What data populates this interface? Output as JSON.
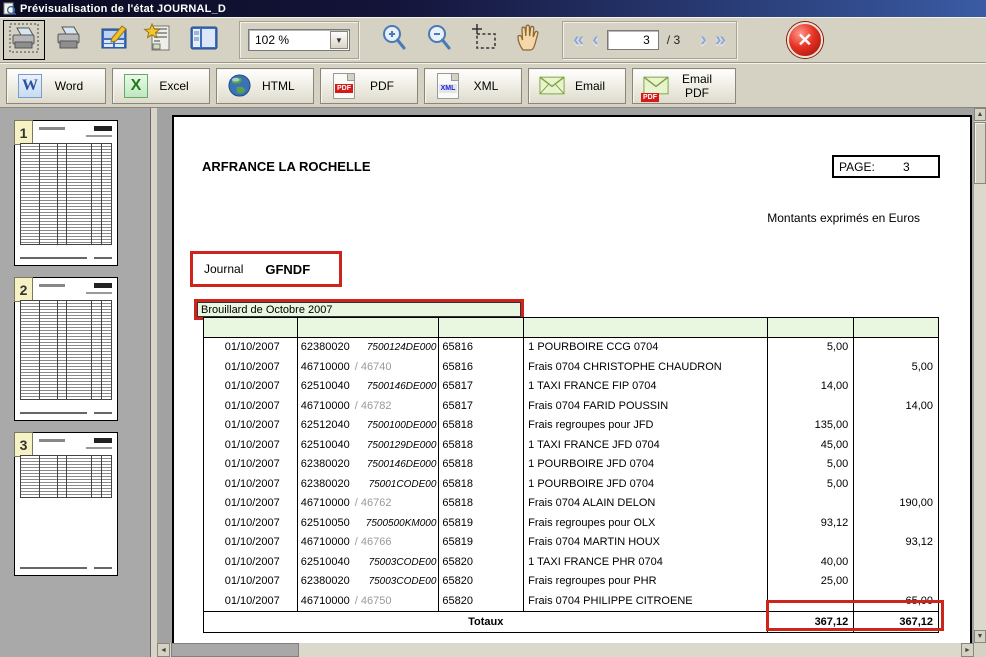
{
  "window": {
    "title": "Prévisualisation de l'état JOURNAL_D"
  },
  "toolbar": {
    "buttons": [
      {
        "icon": "print-preview-icon",
        "selected": true
      },
      {
        "icon": "printer-icon",
        "selected": false
      },
      {
        "icon": "page-setup-icon",
        "selected": false
      },
      {
        "icon": "report-wizard-icon",
        "selected": false
      },
      {
        "icon": "layout-panels-icon",
        "selected": false
      }
    ],
    "zoom_value": "102 %",
    "zoom_in_icon": "zoom-in-icon",
    "zoom_out_icon": "zoom-out-icon",
    "select_tool_icon": "selection-tool-icon",
    "hand_tool_icon": "hand-tool-icon",
    "nav": {
      "first": "«",
      "prev": "‹",
      "next": "›",
      "last": "»",
      "page_current": "3",
      "page_total": "/ 3"
    },
    "close_icon": "close-icon",
    "close_glyph": "✕",
    "dropdown_glyph": "▼"
  },
  "export_buttons": [
    {
      "label": "Word",
      "icon": "word-icon",
      "glyph": "W"
    },
    {
      "label": "Excel",
      "icon": "excel-icon",
      "glyph": "X"
    },
    {
      "label": "HTML",
      "icon": "globe-icon",
      "glyph": ""
    },
    {
      "label": "PDF",
      "icon": "pdf-icon",
      "glyph": "PDF"
    },
    {
      "label": "XML",
      "icon": "xml-icon",
      "glyph": "XML"
    },
    {
      "label": "Email",
      "icon": "email-icon",
      "glyph": ""
    },
    {
      "label": "Email PDF",
      "icon": "email-pdf-icon",
      "glyph": "PDF"
    }
  ],
  "thumbnails": [
    {
      "number": "1",
      "fill": "full"
    },
    {
      "number": "2",
      "fill": "full"
    },
    {
      "number": "3",
      "fill": "partial"
    }
  ],
  "document": {
    "company": "ARFRANCE LA ROCHELLE",
    "page_label": "PAGE:",
    "page_number": "3",
    "currency_note": "Montants exprimés en Euros",
    "journal_label": "Journal",
    "journal_code": "GFNDF",
    "period_title": "Brouillard de Octobre 2007",
    "rows": [
      {
        "date": "01/10/2007",
        "account": "62380020",
        "aux": "7500124DE000",
        "piece": "65816",
        "label": "1 POURBOIRE CCG 0704",
        "debit": "5,00",
        "credit": ""
      },
      {
        "date": "01/10/2007",
        "account": "46710000",
        "aux": "/ 46740",
        "piece": "65816",
        "label": "Frais 0704 CHRISTOPHE CHAUDRON",
        "debit": "",
        "credit": "5,00"
      },
      {
        "date": "01/10/2007",
        "account": "62510040",
        "aux": "7500146DE000",
        "piece": "65817",
        "label": "1 TAXI FRANCE FIP 0704",
        "debit": "14,00",
        "credit": ""
      },
      {
        "date": "01/10/2007",
        "account": "46710000",
        "aux": "/ 46782",
        "piece": "65817",
        "label": "Frais 0704 FARID POUSSIN",
        "debit": "",
        "credit": "14,00"
      },
      {
        "date": "01/10/2007",
        "account": "62512040",
        "aux": "7500100DE000",
        "piece": "65818",
        "label": "Frais regroupes pour JFD",
        "debit": "135,00",
        "credit": ""
      },
      {
        "date": "01/10/2007",
        "account": "62510040",
        "aux": "7500129DE000",
        "piece": "65818",
        "label": "1 TAXI FRANCE JFD 0704",
        "debit": "45,00",
        "credit": ""
      },
      {
        "date": "01/10/2007",
        "account": "62380020",
        "aux": "7500146DE000",
        "piece": "65818",
        "label": "1 POURBOIRE JFD 0704",
        "debit": "5,00",
        "credit": ""
      },
      {
        "date": "01/10/2007",
        "account": "62380020",
        "aux": "75001CODE00",
        "piece": "65818",
        "label": "1 POURBOIRE JFD 0704",
        "debit": "5,00",
        "credit": ""
      },
      {
        "date": "01/10/2007",
        "account": "46710000",
        "aux": "/ 46762",
        "piece": "65818",
        "label": "Frais 0704 ALAIN DELON",
        "debit": "",
        "credit": "190,00"
      },
      {
        "date": "01/10/2007",
        "account": "62510050",
        "aux": "7500500KM000",
        "piece": "65819",
        "label": "Frais regroupes pour OLX",
        "debit": "93,12",
        "credit": ""
      },
      {
        "date": "01/10/2007",
        "account": "46710000",
        "aux": "/ 46766",
        "piece": "65819",
        "label": "Frais 0704 MARTIN HOUX",
        "debit": "",
        "credit": "93,12"
      },
      {
        "date": "01/10/2007",
        "account": "62510040",
        "aux": "75003CODE00",
        "piece": "65820",
        "label": "1 TAXI FRANCE PHR 0704",
        "debit": "40,00",
        "credit": ""
      },
      {
        "date": "01/10/2007",
        "account": "62380020",
        "aux": "75003CODE00",
        "piece": "65820",
        "label": "Frais regroupes pour PHR",
        "debit": "25,00",
        "credit": ""
      },
      {
        "date": "01/10/2007",
        "account": "46710000",
        "aux": "/ 46750",
        "piece": "65820",
        "label": "Frais 0704 PHILIPPE CITROENE",
        "debit": "",
        "credit": "65,00"
      }
    ],
    "totals_label": "Totaux",
    "total_debit": "367,12",
    "total_credit": "367,12"
  },
  "colors": {
    "highlight_red": "#cf241c",
    "band_green": "#e9f6e0",
    "titlebar_blue": "#3a5ba4",
    "toolbar_tan": "#d5d1c3",
    "aux_gray": "#9a9a9a"
  }
}
